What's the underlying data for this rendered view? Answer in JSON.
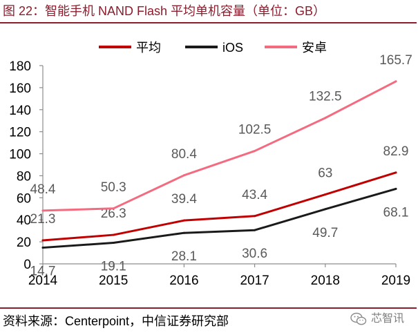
{
  "figure": {
    "source": "资料来源：Centerpoint，中信证券研究部",
    "watermark": "芯智讯",
    "watermark_icon": "wechat-icon"
  },
  "colors": {
    "title": "#8C1C2C",
    "rule": "#8C1C2C",
    "data_label": "#595959",
    "axis": "#8C8C8C"
  },
  "chart_data": {
    "type": "line",
    "title": "图 22：智能手机 NAND Flash 平均单机容量（单位：GB）",
    "categories": [
      "2014",
      "2015",
      "2016",
      "2017",
      "2018",
      "2019"
    ],
    "series": [
      {
        "name": "平均",
        "color": "#C00000",
        "values": [
          21.3,
          26.3,
          39.4,
          43.4,
          63,
          82.9
        ]
      },
      {
        "name": "iOS",
        "color": "#1A1A1A",
        "values": [
          14.7,
          19.1,
          28.1,
          30.6,
          49.7,
          68.1
        ]
      },
      {
        "name": "安卓",
        "color": "#F36B80",
        "values": [
          48.4,
          50.3,
          80.4,
          102.5,
          132.5,
          165.7
        ]
      }
    ],
    "ylim": [
      0,
      180
    ],
    "yticks": [
      0,
      20,
      40,
      60,
      80,
      100,
      120,
      140,
      160,
      180
    ],
    "grid": false,
    "legend": "top",
    "data_labels": true
  }
}
